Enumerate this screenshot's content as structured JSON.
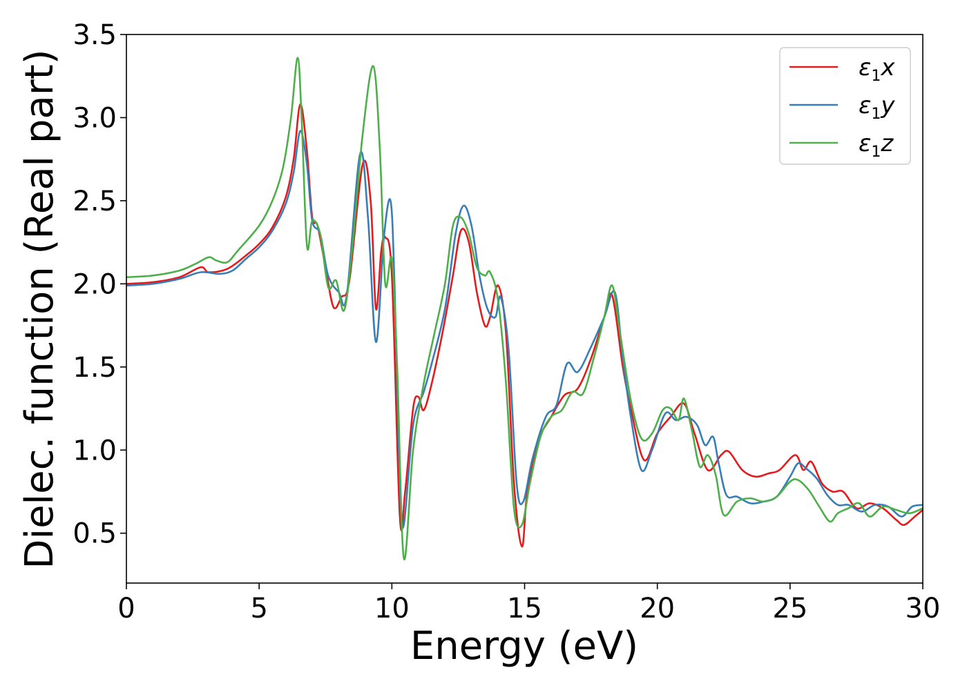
{
  "chart_data": {
    "type": "line",
    "xlabel": "Energy (eV)",
    "ylabel": "Dielec. function (Real part)",
    "xlim": [
      0,
      30
    ],
    "ylim": [
      0.2,
      3.5
    ],
    "x_ticks": [
      0,
      5,
      10,
      15,
      20,
      25,
      30
    ],
    "y_ticks": [
      0.5,
      1.0,
      1.5,
      2.0,
      2.5,
      3.0,
      3.5
    ],
    "x_tick_labels": [
      "0",
      "5",
      "10",
      "15",
      "20",
      "25",
      "30"
    ],
    "y_tick_labels": [
      "0.5",
      "1.0",
      "1.5",
      "2.0",
      "2.5",
      "3.0",
      "3.5"
    ],
    "grid": false,
    "legend_position": "top-right",
    "series": [
      {
        "name": "ε1x",
        "legend": {
          "symbol": "ε",
          "sub": "1",
          "var": "x"
        },
        "color": "#e41a1c",
        "points": [
          [
            0,
            2.0
          ],
          [
            1,
            2.01
          ],
          [
            2,
            2.04
          ],
          [
            2.8,
            2.1
          ],
          [
            3.1,
            2.07
          ],
          [
            3.8,
            2.09
          ],
          [
            4.5,
            2.17
          ],
          [
            5.0,
            2.24
          ],
          [
            5.5,
            2.34
          ],
          [
            6.0,
            2.52
          ],
          [
            6.3,
            2.75
          ],
          [
            6.55,
            3.08
          ],
          [
            6.8,
            2.8
          ],
          [
            7.0,
            2.4
          ],
          [
            7.2,
            2.35
          ],
          [
            7.5,
            2.1
          ],
          [
            7.8,
            1.86
          ],
          [
            8.1,
            1.92
          ],
          [
            8.4,
            2.02
          ],
          [
            8.9,
            2.72
          ],
          [
            9.2,
            2.5
          ],
          [
            9.4,
            1.85
          ],
          [
            9.6,
            2.2
          ],
          [
            9.75,
            2.28
          ],
          [
            10.0,
            2.05
          ],
          [
            10.3,
            0.6
          ],
          [
            10.5,
            0.75
          ],
          [
            10.8,
            1.25
          ],
          [
            11.0,
            1.32
          ],
          [
            11.2,
            1.24
          ],
          [
            11.5,
            1.4
          ],
          [
            11.9,
            1.7
          ],
          [
            12.3,
            2.05
          ],
          [
            12.6,
            2.32
          ],
          [
            12.9,
            2.25
          ],
          [
            13.2,
            1.95
          ],
          [
            13.5,
            1.75
          ],
          [
            13.7,
            1.8
          ],
          [
            14.0,
            1.99
          ],
          [
            14.3,
            1.7
          ],
          [
            14.6,
            0.8
          ],
          [
            14.9,
            0.42
          ],
          [
            15.1,
            0.75
          ],
          [
            15.5,
            1.05
          ],
          [
            16.0,
            1.2
          ],
          [
            16.5,
            1.33
          ],
          [
            17.0,
            1.37
          ],
          [
            17.5,
            1.55
          ],
          [
            18.0,
            1.8
          ],
          [
            18.3,
            1.93
          ],
          [
            18.7,
            1.5
          ],
          [
            19.0,
            1.25
          ],
          [
            19.5,
            0.94
          ],
          [
            20.0,
            1.1
          ],
          [
            20.5,
            1.2
          ],
          [
            21.0,
            1.28
          ],
          [
            21.4,
            1.1
          ],
          [
            21.9,
            0.88
          ],
          [
            22.4,
            0.97
          ],
          [
            22.7,
            0.99
          ],
          [
            23.2,
            0.88
          ],
          [
            23.7,
            0.84
          ],
          [
            24.2,
            0.86
          ],
          [
            24.6,
            0.88
          ],
          [
            25.2,
            0.97
          ],
          [
            25.5,
            0.88
          ],
          [
            25.8,
            0.93
          ],
          [
            26.2,
            0.8
          ],
          [
            26.6,
            0.75
          ],
          [
            27.0,
            0.75
          ],
          [
            27.5,
            0.65
          ],
          [
            28.0,
            0.68
          ],
          [
            28.5,
            0.65
          ],
          [
            29.0,
            0.58
          ],
          [
            29.3,
            0.55
          ],
          [
            29.7,
            0.6
          ],
          [
            30,
            0.64
          ]
        ]
      },
      {
        "name": "ε1y",
        "legend": {
          "symbol": "ε",
          "sub": "1",
          "var": "y"
        },
        "color": "#377eb8",
        "points": [
          [
            0,
            1.99
          ],
          [
            1,
            2.0
          ],
          [
            2,
            2.03
          ],
          [
            2.8,
            2.07
          ],
          [
            3.5,
            2.06
          ],
          [
            4.0,
            2.08
          ],
          [
            4.5,
            2.15
          ],
          [
            5.0,
            2.22
          ],
          [
            5.5,
            2.32
          ],
          [
            6.0,
            2.48
          ],
          [
            6.3,
            2.67
          ],
          [
            6.55,
            2.92
          ],
          [
            6.8,
            2.72
          ],
          [
            7.0,
            2.38
          ],
          [
            7.3,
            2.3
          ],
          [
            7.6,
            2.05
          ],
          [
            8.0,
            1.95
          ],
          [
            8.3,
            1.93
          ],
          [
            8.8,
            2.78
          ],
          [
            9.1,
            2.4
          ],
          [
            9.4,
            1.65
          ],
          [
            9.7,
            2.28
          ],
          [
            9.95,
            2.5
          ],
          [
            10.1,
            2.0
          ],
          [
            10.3,
            0.8
          ],
          [
            10.45,
            0.55
          ],
          [
            10.8,
            1.15
          ],
          [
            11.2,
            1.35
          ],
          [
            11.5,
            1.52
          ],
          [
            12.0,
            1.85
          ],
          [
            12.4,
            2.3
          ],
          [
            12.7,
            2.47
          ],
          [
            13.0,
            2.35
          ],
          [
            13.3,
            2.05
          ],
          [
            13.6,
            1.85
          ],
          [
            13.9,
            1.8
          ],
          [
            14.1,
            1.92
          ],
          [
            14.4,
            1.6
          ],
          [
            14.7,
            0.8
          ],
          [
            14.95,
            0.69
          ],
          [
            15.3,
            0.95
          ],
          [
            15.8,
            1.2
          ],
          [
            16.2,
            1.27
          ],
          [
            16.6,
            1.52
          ],
          [
            17.0,
            1.47
          ],
          [
            17.5,
            1.62
          ],
          [
            18.0,
            1.8
          ],
          [
            18.4,
            1.95
          ],
          [
            18.7,
            1.55
          ],
          [
            19.0,
            1.2
          ],
          [
            19.4,
            0.88
          ],
          [
            19.8,
            1.0
          ],
          [
            20.3,
            1.22
          ],
          [
            20.7,
            1.18
          ],
          [
            21.1,
            1.2
          ],
          [
            21.5,
            1.15
          ],
          [
            21.8,
            1.03
          ],
          [
            22.1,
            1.08
          ],
          [
            22.3,
            0.93
          ],
          [
            22.6,
            0.73
          ],
          [
            23.0,
            0.72
          ],
          [
            23.5,
            0.68
          ],
          [
            24.0,
            0.69
          ],
          [
            24.5,
            0.72
          ],
          [
            25.0,
            0.84
          ],
          [
            25.3,
            0.92
          ],
          [
            25.6,
            0.89
          ],
          [
            26.0,
            0.83
          ],
          [
            26.4,
            0.73
          ],
          [
            26.8,
            0.67
          ],
          [
            27.2,
            0.67
          ],
          [
            27.7,
            0.63
          ],
          [
            28.2,
            0.67
          ],
          [
            28.7,
            0.66
          ],
          [
            29.2,
            0.6
          ],
          [
            29.6,
            0.66
          ],
          [
            30,
            0.67
          ]
        ]
      },
      {
        "name": "ε1z",
        "legend": {
          "symbol": "ε",
          "sub": "1",
          "var": "z"
        },
        "color": "#4daf4a",
        "points": [
          [
            0,
            2.04
          ],
          [
            1,
            2.05
          ],
          [
            2,
            2.08
          ],
          [
            2.6,
            2.12
          ],
          [
            3.1,
            2.16
          ],
          [
            3.4,
            2.14
          ],
          [
            3.8,
            2.13
          ],
          [
            4.2,
            2.2
          ],
          [
            5.0,
            2.35
          ],
          [
            5.5,
            2.5
          ],
          [
            5.9,
            2.7
          ],
          [
            6.2,
            3.0
          ],
          [
            6.45,
            3.36
          ],
          [
            6.6,
            3.0
          ],
          [
            6.8,
            2.23
          ],
          [
            7.0,
            2.38
          ],
          [
            7.3,
            2.3
          ],
          [
            7.6,
            1.98
          ],
          [
            7.9,
            2.02
          ],
          [
            8.2,
            1.84
          ],
          [
            8.5,
            2.2
          ],
          [
            8.9,
            2.9
          ],
          [
            9.3,
            3.31
          ],
          [
            9.55,
            2.8
          ],
          [
            9.75,
            2.0
          ],
          [
            10.0,
            2.15
          ],
          [
            10.2,
            1.5
          ],
          [
            10.45,
            0.35
          ],
          [
            10.8,
            1.0
          ],
          [
            11.2,
            1.4
          ],
          [
            11.6,
            1.7
          ],
          [
            12.0,
            2.0
          ],
          [
            12.3,
            2.35
          ],
          [
            12.6,
            2.4
          ],
          [
            12.9,
            2.3
          ],
          [
            13.2,
            2.1
          ],
          [
            13.5,
            2.05
          ],
          [
            13.7,
            2.07
          ],
          [
            14.0,
            1.9
          ],
          [
            14.3,
            1.4
          ],
          [
            14.6,
            0.65
          ],
          [
            14.9,
            0.55
          ],
          [
            15.2,
            0.8
          ],
          [
            15.6,
            1.08
          ],
          [
            16.0,
            1.2
          ],
          [
            16.4,
            1.24
          ],
          [
            16.8,
            1.35
          ],
          [
            17.2,
            1.34
          ],
          [
            17.6,
            1.55
          ],
          [
            18.0,
            1.8
          ],
          [
            18.3,
            1.99
          ],
          [
            18.6,
            1.7
          ],
          [
            19.0,
            1.3
          ],
          [
            19.4,
            1.07
          ],
          [
            19.8,
            1.1
          ],
          [
            20.2,
            1.24
          ],
          [
            20.5,
            1.25
          ],
          [
            20.8,
            1.18
          ],
          [
            21.0,
            1.31
          ],
          [
            21.3,
            1.12
          ],
          [
            21.6,
            0.9
          ],
          [
            21.9,
            0.97
          ],
          [
            22.2,
            0.85
          ],
          [
            22.5,
            0.61
          ],
          [
            23.0,
            0.69
          ],
          [
            23.5,
            0.71
          ],
          [
            24.0,
            0.69
          ],
          [
            24.5,
            0.72
          ],
          [
            25.0,
            0.81
          ],
          [
            25.3,
            0.82
          ],
          [
            25.7,
            0.76
          ],
          [
            26.1,
            0.66
          ],
          [
            26.5,
            0.57
          ],
          [
            26.8,
            0.62
          ],
          [
            27.2,
            0.65
          ],
          [
            27.6,
            0.68
          ],
          [
            28.0,
            0.6
          ],
          [
            28.5,
            0.66
          ],
          [
            29.0,
            0.64
          ],
          [
            29.5,
            0.62
          ],
          [
            30,
            0.65
          ]
        ]
      }
    ]
  }
}
